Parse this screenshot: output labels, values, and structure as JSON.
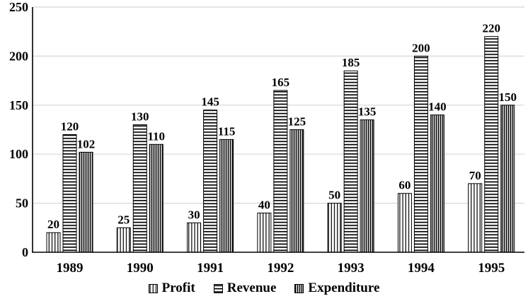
{
  "chart_data": {
    "type": "bar",
    "title": "",
    "xlabel": "",
    "ylabel": "",
    "categories": [
      "1989",
      "1990",
      "1991",
      "1992",
      "1993",
      "1994",
      "1995"
    ],
    "series": [
      {
        "name": "Profit",
        "values": [
          20,
          25,
          30,
          40,
          50,
          60,
          70
        ],
        "pattern": "vertical-sparse"
      },
      {
        "name": "Revenue",
        "values": [
          120,
          130,
          145,
          165,
          185,
          200,
          220
        ],
        "pattern": "horizontal"
      },
      {
        "name": "Expenditure",
        "values": [
          102,
          110,
          115,
          125,
          135,
          140,
          150
        ],
        "pattern": "vertical-dense"
      }
    ],
    "ylim": [
      0,
      250
    ],
    "yticks": [
      0,
      50,
      100,
      150,
      200,
      250
    ],
    "grid": "horizontal",
    "data_labels": true,
    "legend_position": "bottom",
    "colors": {
      "bar_fill_bg": "#ffffff",
      "bar_stroke": "#000000",
      "pattern_stroke": "#000000",
      "gridline": "#d7d7d7",
      "axis": "#000000",
      "text": "#000000",
      "background": "#ffffff"
    }
  }
}
